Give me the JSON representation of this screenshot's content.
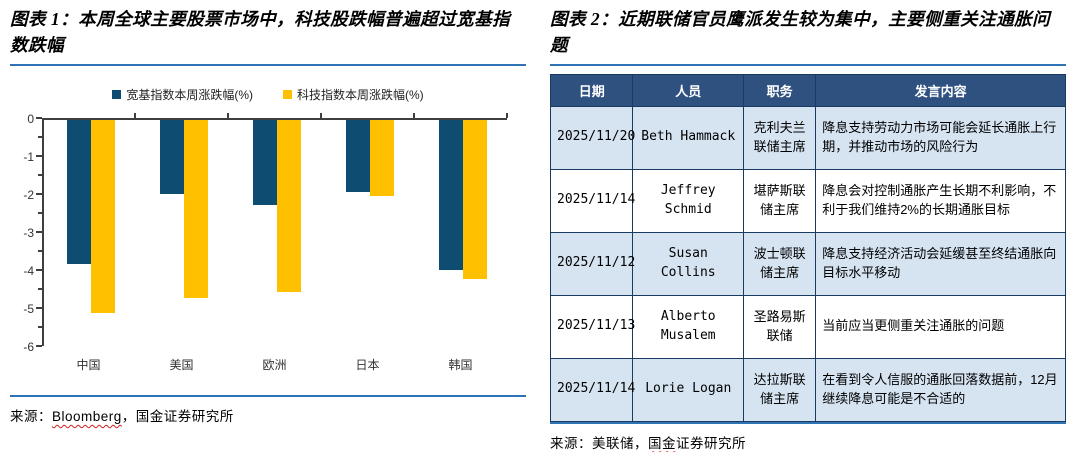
{
  "figure1": {
    "title": "图表 1：本周全球主要股票市场中，科技股跌幅普遍超过宽基指数跌幅",
    "source_label": "来源：",
    "source_parts": [
      {
        "text": "Bloomberg",
        "misspell": true
      },
      {
        "text": "，国金证券研究所",
        "misspell": false
      }
    ]
  },
  "chart_data": {
    "type": "bar",
    "title": "",
    "xlabel": "",
    "ylabel": "",
    "categories": [
      "中国",
      "美国",
      "欧洲",
      "日本",
      "韩国"
    ],
    "series": [
      {
        "name": "宽基指数本周涨跌幅(%)",
        "color": "#0F4C72",
        "values": [
          -3.8,
          -1.95,
          -2.25,
          -1.9,
          -3.95
        ]
      },
      {
        "name": "科技指数本周涨跌幅(%)",
        "color": "#FFC000",
        "values": [
          -5.1,
          -4.7,
          -4.55,
          -2.0,
          -4.2
        ]
      }
    ],
    "ylim": [
      -6,
      0
    ],
    "yticks": [
      0,
      -1,
      -2,
      -3,
      -4,
      -5,
      -6
    ],
    "minor_tick_step": 0.5,
    "grid": false,
    "legend_position": "top"
  },
  "figure2": {
    "title": "图表 2：近期联储官员鹰派发生较为集中，主要侧重关注通胀问题",
    "source_label": "来源：",
    "source_parts": [
      {
        "text": "美联储，",
        "misspell": false
      },
      {
        "text": "国金",
        "misspell": true
      },
      {
        "text": "证券研究所",
        "misspell": false
      }
    ],
    "table": {
      "headers": [
        "日期",
        "人员",
        "职务",
        "发言内容"
      ],
      "col_widths": [
        "16%",
        "21.5%",
        "14%",
        "48.5%"
      ],
      "rows": [
        {
          "date": "2025/11/20",
          "person": "Beth Hammack",
          "role": "克利夫兰联储主席",
          "speech": "降息支持劳动力市场可能会延长通胀上行期，并推动市场的风险行为"
        },
        {
          "date": "2025/11/14",
          "person": "Jeffrey Schmid",
          "role": "堪萨斯联储主席",
          "speech": "降息会对控制通胀产生长期不利影响，不利于我们维持2%的长期通胀目标"
        },
        {
          "date": "2025/11/12",
          "person": "Susan Collins",
          "role": "波士顿联储主席",
          "speech": "降息支持经济活动会延缓甚至终结通胀向目标水平移动"
        },
        {
          "date": "2025/11/13",
          "person": "Alberto Musalem",
          "role": "圣路易斯联储",
          "speech": "当前应当更侧重关注通胀的问题"
        },
        {
          "date": "2025/11/14",
          "person": "Lorie Logan",
          "role": "达拉斯联储主席",
          "speech": "在看到令人信服的通胀回落数据前，12月继续降息可能是不合适的"
        }
      ]
    }
  },
  "colors": {
    "accent_line": "#2E74B5",
    "bar_blue": "#0F4C72",
    "bar_yellow": "#FFC000",
    "table_header_bg": "#2E5180",
    "table_row_alt_bg": "#D6E4F2",
    "table_border": "#1B3A5F",
    "axis": "#3f3f3f"
  }
}
